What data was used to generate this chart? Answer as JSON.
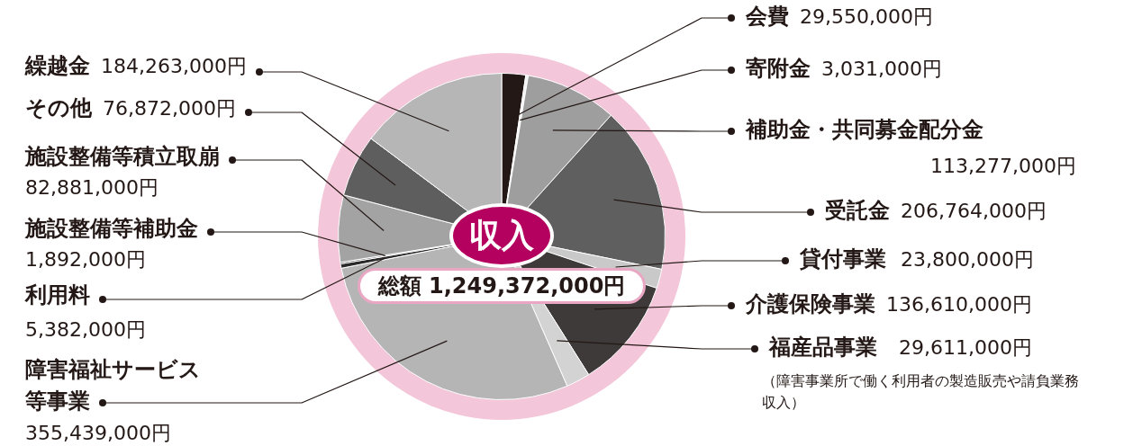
{
  "chart_data": {
    "type": "pie",
    "categories": [
      "会費",
      "寄附金",
      "補助金・共同募金配分金",
      "受託金",
      "貸付事業",
      "介護保険事業",
      "福産品事業",
      "障害福祉サービス等事業",
      "利用料",
      "施設整備等補助金",
      "施設整備等積立取崩",
      "その他",
      "繰越金"
    ],
    "values": [
      29550000,
      3031000,
      113277000,
      206764000,
      23800000,
      136610000,
      29611000,
      355439000,
      5382000,
      1892000,
      82881000,
      76872000,
      184263000
    ],
    "colors": [
      "#231815",
      "#f2f2f2",
      "#9e9e9e",
      "#5f5f5f",
      "#c9c9c9",
      "#3e3a39",
      "#d3d3d3",
      "#b5b5b5",
      "#2a2a2a",
      "#4a4a4a",
      "#a3a3a3",
      "#5e5e5e",
      "#b6b6b6"
    ],
    "value_labels": [
      "29,550,000円",
      "3,031,000円",
      "113,277,000円",
      "206,764,000円",
      "23,800,000円",
      "136,610,000円",
      "29,611,000円",
      "355,439,000円",
      "5,382,000円",
      "1,892,000円",
      "82,881,000円",
      "76,872,000円",
      "184,263,000円"
    ],
    "annotations": [
      "収入",
      "総額 1,249,372,000円",
      "（障害事業所で働く利用者の製造販売や請負業務収入）"
    ]
  }
}
